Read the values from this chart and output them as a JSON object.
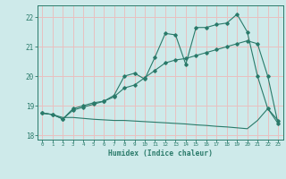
{
  "xlabel": "Humidex (Indice chaleur)",
  "bg_color": "#ceeaea",
  "grid_color": "#e8c0c0",
  "line_color": "#2a7a6a",
  "xlim": [
    -0.5,
    23.5
  ],
  "ylim": [
    17.85,
    22.4
  ],
  "yticks": [
    18,
    19,
    20,
    21,
    22
  ],
  "xticks": [
    0,
    1,
    2,
    3,
    4,
    5,
    6,
    7,
    8,
    9,
    10,
    11,
    12,
    13,
    14,
    15,
    16,
    17,
    18,
    19,
    20,
    21,
    22,
    23
  ],
  "series1_x": [
    0,
    1,
    2,
    3,
    4,
    5,
    6,
    7,
    8,
    9,
    10,
    11,
    12,
    13,
    14,
    15,
    16,
    17,
    18,
    19,
    20,
    21,
    22,
    23
  ],
  "series1_y": [
    18.75,
    18.7,
    18.55,
    18.9,
    19.0,
    19.1,
    19.15,
    19.35,
    20.0,
    20.1,
    19.9,
    20.65,
    21.45,
    21.4,
    20.4,
    21.65,
    21.65,
    21.75,
    21.8,
    22.1,
    21.5,
    20.0,
    18.9,
    18.5
  ],
  "series2_x": [
    0,
    1,
    2,
    3,
    4,
    5,
    6,
    7,
    8,
    9,
    10,
    11,
    12,
    13,
    14,
    15,
    16,
    17,
    18,
    19,
    20,
    21,
    22,
    23
  ],
  "series2_y": [
    18.75,
    18.7,
    18.55,
    18.85,
    18.95,
    19.05,
    19.15,
    19.3,
    19.6,
    19.7,
    19.95,
    20.2,
    20.45,
    20.55,
    20.6,
    20.7,
    20.8,
    20.9,
    21.0,
    21.1,
    21.2,
    21.1,
    20.0,
    18.4
  ],
  "series3_x": [
    0,
    1,
    2,
    3,
    4,
    5,
    6,
    7,
    8,
    9,
    10,
    11,
    12,
    13,
    14,
    15,
    16,
    17,
    18,
    19,
    20,
    21,
    22,
    23
  ],
  "series3_y": [
    18.75,
    18.7,
    18.6,
    18.6,
    18.57,
    18.54,
    18.52,
    18.5,
    18.5,
    18.48,
    18.46,
    18.44,
    18.42,
    18.4,
    18.38,
    18.35,
    18.33,
    18.3,
    18.28,
    18.25,
    18.22,
    18.5,
    18.9,
    18.4
  ]
}
